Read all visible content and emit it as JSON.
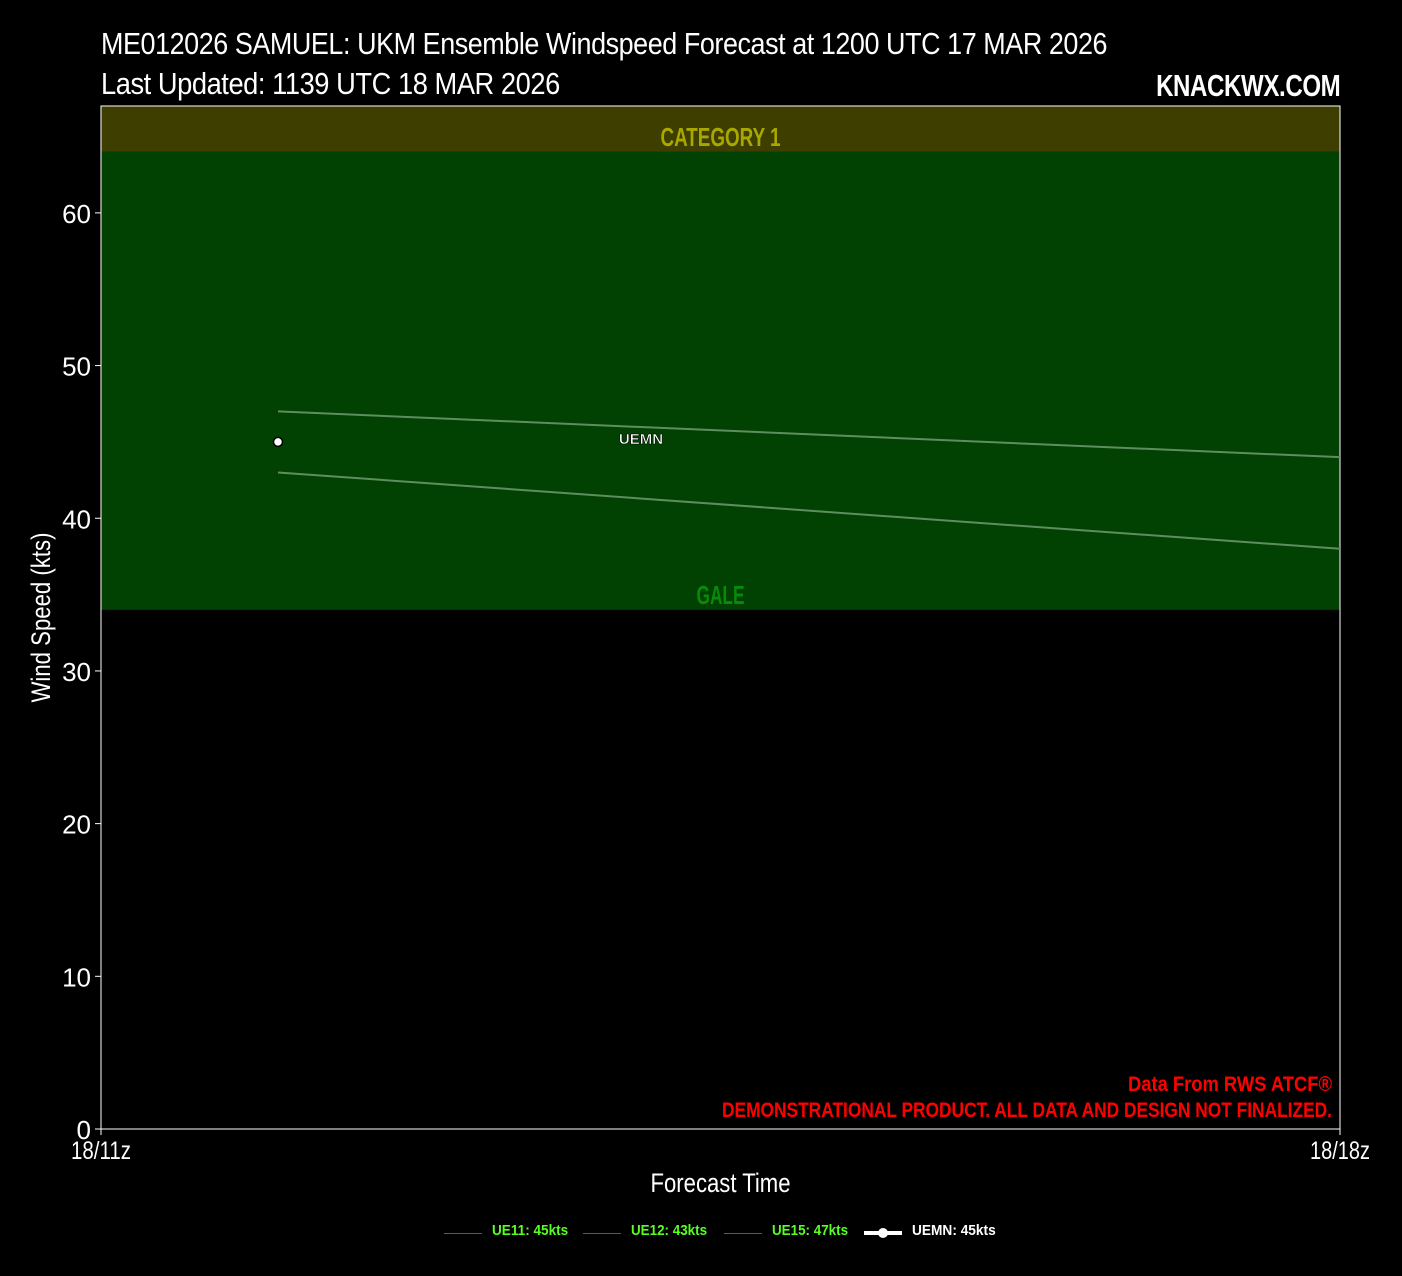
{
  "header": {
    "title": "ME012026 SAMUEL: UKM Ensemble Windspeed Forecast at 1200 UTC 17 MAR 2026",
    "subtitle": "Last Updated: 1139 UTC 18 MAR 2026",
    "brand": "KNACKWX.COM"
  },
  "footer": {
    "source": "Data From RWS ATCF®",
    "disclaimer": "DEMONSTRATIONAL PRODUCT. ALL DATA AND DESIGN NOT FINALIZED."
  },
  "chart_data": {
    "type": "line",
    "xlabel": "Forecast Time",
    "ylabel": "Wind Speed (kts)",
    "x_ticks": [
      "18/11z",
      "18/18z"
    ],
    "y_ticks": [
      0,
      10,
      20,
      30,
      40,
      50,
      60
    ],
    "ylim": [
      0,
      67
    ],
    "xlim": [
      "18/11z",
      "18/18z"
    ],
    "bands": [
      {
        "label": "GALE",
        "from": 34,
        "to": 64,
        "color": "#014101",
        "label_color": "#0a8a0a"
      },
      {
        "label": "CATEGORY 1",
        "from": 64,
        "to": 67,
        "color": "#3e3e00",
        "label_color": "#a8a800"
      }
    ],
    "x": [
      "18/12z",
      "18/18z"
    ],
    "series": [
      {
        "name": "UE11",
        "values": [
          45,
          null
        ],
        "color": "#2d7a2d",
        "label_color": "#55ff22",
        "legend": "UE11: 45kts"
      },
      {
        "name": "UE12",
        "values": [
          43,
          38
        ],
        "color": "#5e8e5e",
        "label_color": "#55ff22",
        "legend": "UE12: 43kts"
      },
      {
        "name": "UE15",
        "values": [
          47,
          44
        ],
        "color": "#5e8e5e",
        "label_color": "#55ff22",
        "legend": "UE15: 47kts"
      },
      {
        "name": "UEMN",
        "values": [
          45,
          null
        ],
        "color": "#ffffff",
        "label_color": "#ffffff",
        "legend": "UEMN: 45kts",
        "marker": true
      }
    ],
    "annotations": [
      {
        "text": "UEMN",
        "x": "18/14z",
        "y": 45
      }
    ],
    "grid": false,
    "legend_position": "bottom"
  }
}
